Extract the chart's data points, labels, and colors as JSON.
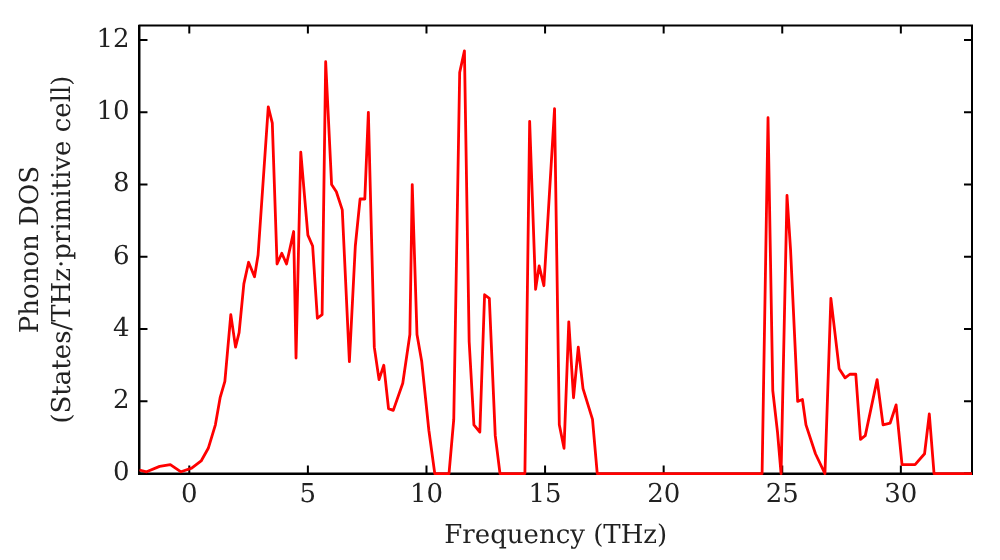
{
  "chart_data": {
    "type": "line",
    "xlabel": "Frequency (THz)",
    "ylabel": "Phonon DOS\n(States/THz·primitive cell)",
    "xlim": [
      -2.1,
      33
    ],
    "xticks": [
      0,
      5,
      10,
      15,
      20,
      25,
      30
    ],
    "ylim": [
      0,
      12.4
    ],
    "yticks": [
      0,
      2,
      4,
      6,
      8,
      10,
      12
    ],
    "grid": false,
    "legend": false,
    "marker": "none",
    "line_style": "solid",
    "series": [
      {
        "color": "#ff0000",
        "x": [
          -2.1,
          -1.8,
          -1.25,
          -0.8,
          -0.35,
          0.1,
          0.5,
          0.8,
          1.1,
          1.3,
          1.5,
          1.75,
          1.95,
          2.1,
          2.3,
          2.5,
          2.75,
          2.9,
          3.33,
          3.5,
          3.7,
          3.9,
          4.1,
          4.4,
          4.5,
          4.7,
          5.0,
          5.2,
          5.4,
          5.6,
          5.75,
          6.0,
          6.2,
          6.45,
          6.75,
          7.0,
          7.2,
          7.4,
          7.55,
          7.8,
          8.0,
          8.2,
          8.4,
          8.6,
          9.0,
          9.3,
          9.4,
          9.6,
          9.8,
          10.1,
          10.35,
          10.95,
          11.15,
          11.4,
          11.6,
          11.8,
          12.0,
          12.25,
          12.45,
          12.65,
          12.9,
          13.1,
          14.15,
          14.35,
          14.6,
          14.75,
          14.95,
          15.4,
          15.6,
          15.8,
          16.0,
          16.2,
          16.4,
          16.6,
          17.0,
          17.2,
          24.15,
          24.4,
          24.6,
          24.8,
          24.95,
          25.2,
          25.35,
          25.65,
          25.85,
          26.0,
          26.4,
          26.8,
          27.05,
          27.4,
          27.65,
          27.85,
          28.1,
          28.3,
          28.5,
          29.0,
          29.25,
          29.55,
          29.8,
          30.05,
          30.6,
          31.0,
          31.2,
          31.4,
          33
        ],
        "values": [
          0.1,
          0.05,
          0.2,
          0.25,
          0.05,
          0.15,
          0.35,
          0.7,
          1.35,
          2.1,
          2.55,
          4.4,
          3.5,
          3.9,
          5.25,
          5.85,
          5.45,
          6.05,
          10.15,
          9.7,
          5.8,
          6.1,
          5.8,
          6.7,
          3.2,
          8.9,
          6.6,
          6.3,
          4.3,
          4.4,
          11.4,
          8.0,
          7.8,
          7.3,
          3.1,
          6.3,
          7.6,
          7.6,
          10.0,
          3.5,
          2.6,
          3.0,
          1.8,
          1.75,
          2.5,
          3.85,
          8.0,
          3.85,
          3.1,
          1.2,
          0,
          0,
          1.5,
          11.1,
          11.7,
          3.65,
          1.35,
          1.15,
          4.95,
          4.85,
          1.05,
          0,
          0,
          9.75,
          5.1,
          5.75,
          5.2,
          10.1,
          1.35,
          0.7,
          4.2,
          2.1,
          3.5,
          2.35,
          1.5,
          0,
          0,
          9.85,
          2.3,
          1.15,
          0,
          7.7,
          6.2,
          2.0,
          2.05,
          1.35,
          0.55,
          0,
          4.85,
          2.9,
          2.65,
          2.75,
          2.75,
          0.95,
          1.05,
          2.6,
          1.35,
          1.4,
          1.9,
          0.25,
          0.25,
          0.55,
          1.65,
          0,
          0
        ]
      }
    ]
  }
}
